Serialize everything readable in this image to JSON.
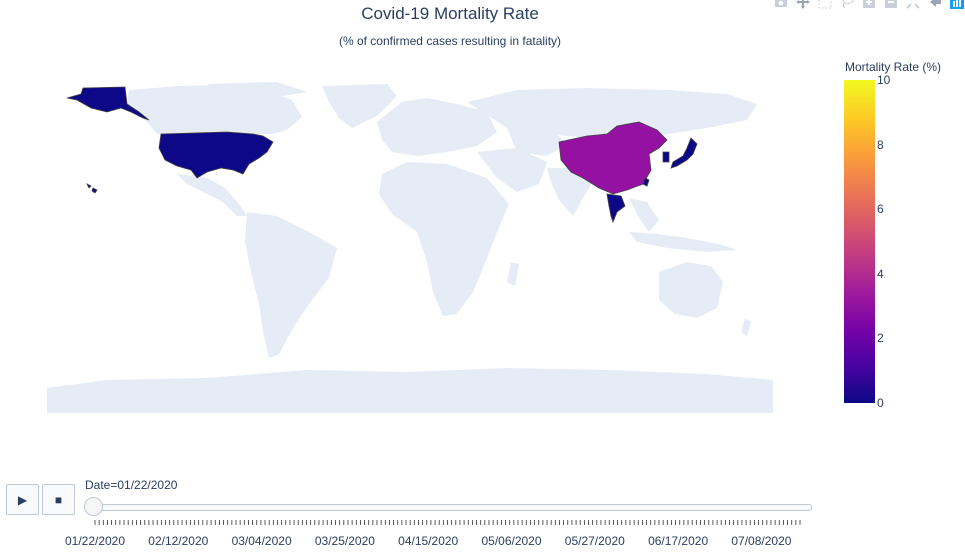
{
  "title": "Covid-19 Mortality Rate",
  "subtitle": "(% of confirmed cases resulting in fatality)",
  "modebar": [
    "camera-icon",
    "pan-icon",
    "box-select-icon",
    "lasso-icon",
    "zoom-in-icon",
    "zoom-out-icon",
    "autoscale-icon",
    "reset-icon",
    "plotly-logo-icon"
  ],
  "colorbar": {
    "title": "Mortality Rate (%)",
    "ticks": [
      "10",
      "8",
      "6",
      "4",
      "2",
      "0"
    ],
    "range": [
      0,
      10
    ]
  },
  "map_data": {
    "land_color": "#e5ecf6",
    "regions": [
      {
        "name": "Alaska (USA)",
        "value": 0
      },
      {
        "name": "United States",
        "value": 0
      },
      {
        "name": "Hawaii (USA)",
        "value": 0
      },
      {
        "name": "China",
        "value": 3.1
      },
      {
        "name": "Japan",
        "value": 0
      },
      {
        "name": "South Korea",
        "value": 0
      },
      {
        "name": "Thailand",
        "value": 0
      },
      {
        "name": "Taiwan",
        "value": 0
      }
    ]
  },
  "animation": {
    "play_label": "▶",
    "stop_label": "■",
    "current_label": "Date=01/22/2020",
    "slider_value": 0,
    "tick_labels": [
      "01/22/2020",
      "02/12/2020",
      "03/04/2020",
      "03/25/2020",
      "04/15/2020",
      "05/06/2020",
      "05/27/2020",
      "06/17/2020",
      "07/08/2020"
    ]
  }
}
